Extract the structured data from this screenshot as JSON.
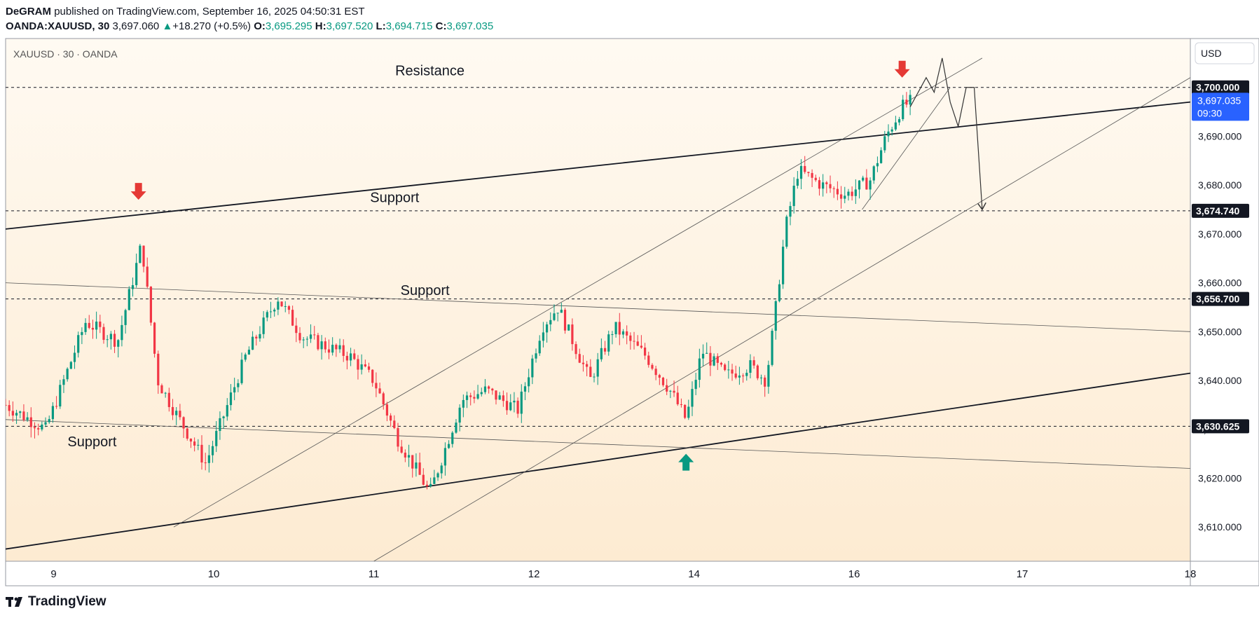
{
  "header": {
    "publisher": "DeGRAM",
    "published_text": "published on TradingView.com, September 16, 2025 04:50:31 EST",
    "symbol": "OANDA:XAUUSD, 30",
    "last": "3,697.060",
    "change": "+18.270 (+0.5%)",
    "o_label": "O:",
    "o": "3,695.295",
    "h_label": "H:",
    "h": "3,697.520",
    "l_label": "L:",
    "l": "3,694.715",
    "c_label": "C:",
    "c": "3,697.035"
  },
  "footer": {
    "brand": "TradingView",
    "logo_icon": "tradingview-logo-icon"
  },
  "chart_data": {
    "type": "candlestick",
    "pane_title": "XAUUSD · 30 · OANDA",
    "currency": "USD",
    "ylim": [
      3603,
      3710
    ],
    "y_ticks": [
      3610,
      3620,
      3630,
      3640,
      3650,
      3660,
      3670,
      3680,
      3690
    ],
    "y_tick_labels": [
      "3,610.000",
      "3,620.000",
      "3,630.000",
      "3,640.000",
      "3,650.000",
      "3,660.000",
      "3,670.000",
      "3,680.000",
      "3,690.000"
    ],
    "x_ticks": [
      {
        "label": "9",
        "x": 0.3
      },
      {
        "label": "10",
        "x": 1.3
      },
      {
        "label": "11",
        "x": 2.3
      },
      {
        "label": "12",
        "x": 3.3
      },
      {
        "label": "14",
        "x": 4.3
      },
      {
        "label": "16",
        "x": 5.3
      },
      {
        "label": "17",
        "x": 6.35
      },
      {
        "label": "18",
        "x": 7.4
      }
    ],
    "xlim": [
      0,
      7.4
    ],
    "price_levels": [
      {
        "value": 3700.0,
        "label": "3,700.000"
      },
      {
        "value": 3674.74,
        "label": "3,674.740"
      },
      {
        "value": 3656.7,
        "label": "3,656.700"
      },
      {
        "value": 3630.625,
        "label": "3,630.625"
      }
    ],
    "current_price": {
      "label": "3,697.035",
      "countdown": "09:30",
      "color": "#2962ff"
    },
    "annotations": [
      {
        "text": "Resistance",
        "x": 2.65,
        "y": 3702.5
      },
      {
        "text": "Support",
        "x": 2.43,
        "y": 3676.5
      },
      {
        "text": "Support",
        "x": 2.62,
        "y": 3657.5
      },
      {
        "text": "Support",
        "x": 0.54,
        "y": 3626.5
      }
    ],
    "trend_lines": [
      {
        "name": "resistance-trendline",
        "x1": 0,
        "y1": 3671,
        "x2": 7.4,
        "y2": 3697,
        "width": 1.8,
        "color": "#131722"
      },
      {
        "name": "lower-support-trendline",
        "x1": 0,
        "y1": 3605.5,
        "x2": 7.4,
        "y2": 3641.5,
        "width": 1.8,
        "color": "#131722"
      },
      {
        "name": "falling-channel-upper",
        "x1": 0,
        "y1": 3660,
        "x2": 7.4,
        "y2": 3650,
        "width": 0.8,
        "color": "#555555"
      },
      {
        "name": "falling-channel-lower",
        "x1": 0,
        "y1": 3632,
        "x2": 7.4,
        "y2": 3622,
        "width": 0.8,
        "color": "#555555"
      },
      {
        "name": "rising-channel-upper",
        "x1": 1.05,
        "y1": 3610,
        "x2": 6.1,
        "y2": 3706,
        "width": 0.8,
        "color": "#555555"
      },
      {
        "name": "rising-channel-lower",
        "x1": 2.3,
        "y1": 3603,
        "x2": 7.4,
        "y2": 3702,
        "width": 0.8,
        "color": "#555555"
      },
      {
        "name": "wedge-lower",
        "x1": 5.35,
        "y1": 3675,
        "x2": 5.9,
        "y2": 3700,
        "width": 0.8,
        "color": "#555555"
      }
    ],
    "projection_path": [
      [
        5.65,
        3696
      ],
      [
        5.75,
        3702
      ],
      [
        5.8,
        3699
      ],
      [
        5.85,
        3706
      ],
      [
        5.9,
        3697
      ],
      [
        5.95,
        3692
      ],
      [
        6.0,
        3700
      ],
      [
        6.05,
        3700
      ],
      [
        6.07,
        3690
      ],
      [
        6.1,
        3675
      ]
    ],
    "markers": [
      {
        "name": "sell-arrow",
        "direction": "down",
        "x": 0.83,
        "y": 3677,
        "color": "#e53935"
      },
      {
        "name": "sell-arrow",
        "direction": "down",
        "x": 5.6,
        "y": 3702,
        "color": "#e53935"
      },
      {
        "name": "buy-arrow",
        "direction": "up",
        "x": 4.25,
        "y": 3625,
        "color": "#089981"
      }
    ],
    "price_path": [
      [
        0,
        3635
      ],
      [
        0.25,
        3630
      ],
      [
        0.5,
        3652
      ],
      [
        0.7,
        3648
      ],
      [
        0.85,
        3668
      ],
      [
        0.95,
        3640
      ],
      [
        1.05,
        3634
      ],
      [
        1.25,
        3623
      ],
      [
        1.5,
        3645
      ],
      [
        1.7,
        3657
      ],
      [
        1.85,
        3649
      ],
      [
        2.15,
        3645
      ],
      [
        2.3,
        3640
      ],
      [
        2.45,
        3628
      ],
      [
        2.65,
        3617
      ],
      [
        2.85,
        3636
      ],
      [
        3.0,
        3638
      ],
      [
        3.2,
        3634
      ],
      [
        3.35,
        3651
      ],
      [
        3.45,
        3655
      ],
      [
        3.65,
        3640
      ],
      [
        3.8,
        3651
      ],
      [
        4.0,
        3645
      ],
      [
        4.15,
        3638
      ],
      [
        4.25,
        3632
      ],
      [
        4.35,
        3646
      ],
      [
        4.5,
        3641
      ],
      [
        4.65,
        3643
      ],
      [
        4.75,
        3640
      ],
      [
        4.8,
        3652
      ],
      [
        4.87,
        3671
      ],
      [
        4.95,
        3683
      ],
      [
        5.1,
        3680
      ],
      [
        5.25,
        3678
      ],
      [
        5.4,
        3681
      ],
      [
        5.5,
        3690
      ],
      [
        5.6,
        3696
      ],
      [
        5.65,
        3697
      ]
    ],
    "colors": {
      "up": "#089981",
      "down": "#f23645",
      "level": "#131722",
      "background_top": "#fffaf2",
      "background_bottom": "#fdebd2"
    }
  }
}
